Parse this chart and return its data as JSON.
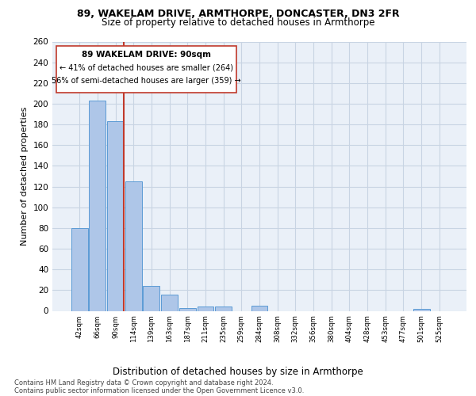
{
  "title": "89, WAKELAM DRIVE, ARMTHORPE, DONCASTER, DN3 2FR",
  "subtitle": "Size of property relative to detached houses in Armthorpe",
  "xlabel_bottom": "Distribution of detached houses by size in Armthorpe",
  "ylabel": "Number of detached properties",
  "bin_labels": [
    "42sqm",
    "66sqm",
    "90sqm",
    "114sqm",
    "139sqm",
    "163sqm",
    "187sqm",
    "211sqm",
    "235sqm",
    "259sqm",
    "284sqm",
    "308sqm",
    "332sqm",
    "356sqm",
    "380sqm",
    "404sqm",
    "428sqm",
    "453sqm",
    "477sqm",
    "501sqm",
    "525sqm"
  ],
  "bar_values": [
    80,
    203,
    183,
    125,
    24,
    16,
    3,
    4,
    4,
    0,
    5,
    0,
    0,
    0,
    0,
    0,
    0,
    0,
    0,
    2,
    0
  ],
  "bar_color": "#aec6e8",
  "bar_edge_color": "#5b9bd5",
  "highlight_bar_index": 2,
  "highlight_color": "#c0392b",
  "ylim": [
    0,
    260
  ],
  "yticks": [
    0,
    20,
    40,
    60,
    80,
    100,
    120,
    140,
    160,
    180,
    200,
    220,
    240,
    260
  ],
  "annotation_title": "89 WAKELAM DRIVE: 90sqm",
  "annotation_line1": "← 41% of detached houses are smaller (264)",
  "annotation_line2": "56% of semi-detached houses are larger (359) →",
  "footer_line1": "Contains HM Land Registry data © Crown copyright and database right 2024.",
  "footer_line2": "Contains public sector information licensed under the Open Government Licence v3.0.",
  "bg_color": "#eaf0f8",
  "grid_color": "#c8d4e3",
  "title_fontsize": 9,
  "subtitle_fontsize": 8.5
}
